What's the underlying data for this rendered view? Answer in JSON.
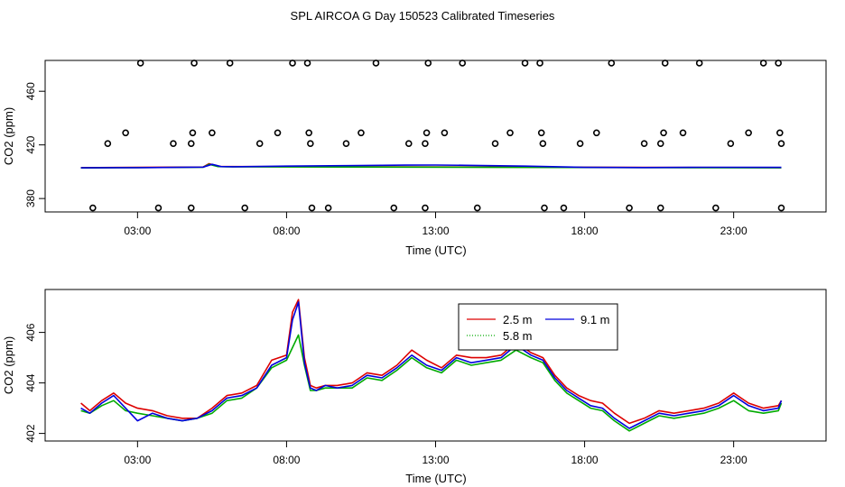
{
  "title": "SPL AIRCOA G  Day 150523  Calibrated Timeseries",
  "colors": {
    "red": "#dd0000",
    "green": "#00aa00",
    "blue": "#0000dd",
    "axis": "#000000",
    "background": "#ffffff"
  },
  "chart_data": [
    {
      "type": "scatter+line",
      "title": "",
      "xlabel": "Time (UTC)",
      "ylabel": "CO2 (ppm)",
      "xlim": [
        -0.1,
        26.1
      ],
      "ylim": [
        370,
        483
      ],
      "xticks": [
        {
          "value": 3,
          "label": "03:00"
        },
        {
          "value": 8,
          "label": "08:00"
        },
        {
          "value": 13,
          "label": "13:00"
        },
        {
          "value": 18,
          "label": "18:00"
        },
        {
          "value": 23,
          "label": "23:00"
        }
      ],
      "yticks": [
        {
          "value": 380,
          "label": "380"
        },
        {
          "value": 420,
          "label": "420"
        },
        {
          "value": 460,
          "label": "460"
        }
      ],
      "points": [
        {
          "x": 1.5,
          "y": 373
        },
        {
          "x": 2.0,
          "y": 421
        },
        {
          "x": 2.6,
          "y": 429
        },
        {
          "x": 3.1,
          "y": 481
        },
        {
          "x": 3.7,
          "y": 373
        },
        {
          "x": 4.2,
          "y": 421
        },
        {
          "x": 4.8,
          "y": 421
        },
        {
          "x": 4.8,
          "y": 373
        },
        {
          "x": 4.85,
          "y": 429
        },
        {
          "x": 4.9,
          "y": 481
        },
        {
          "x": 5.5,
          "y": 429
        },
        {
          "x": 6.1,
          "y": 481
        },
        {
          "x": 6.6,
          "y": 373
        },
        {
          "x": 7.1,
          "y": 421
        },
        {
          "x": 7.7,
          "y": 429
        },
        {
          "x": 8.2,
          "y": 481
        },
        {
          "x": 8.7,
          "y": 481
        },
        {
          "x": 8.75,
          "y": 429
        },
        {
          "x": 8.8,
          "y": 421
        },
        {
          "x": 8.85,
          "y": 373
        },
        {
          "x": 9.4,
          "y": 373
        },
        {
          "x": 10.0,
          "y": 421
        },
        {
          "x": 10.5,
          "y": 429
        },
        {
          "x": 11.0,
          "y": 481
        },
        {
          "x": 11.6,
          "y": 373
        },
        {
          "x": 12.1,
          "y": 421
        },
        {
          "x": 12.65,
          "y": 421
        },
        {
          "x": 12.65,
          "y": 373
        },
        {
          "x": 12.7,
          "y": 429
        },
        {
          "x": 12.75,
          "y": 481
        },
        {
          "x": 13.3,
          "y": 429
        },
        {
          "x": 13.9,
          "y": 481
        },
        {
          "x": 14.4,
          "y": 373
        },
        {
          "x": 15.0,
          "y": 421
        },
        {
          "x": 15.5,
          "y": 429
        },
        {
          "x": 16.0,
          "y": 481
        },
        {
          "x": 16.5,
          "y": 481
        },
        {
          "x": 16.55,
          "y": 429
        },
        {
          "x": 16.6,
          "y": 421
        },
        {
          "x": 16.65,
          "y": 373
        },
        {
          "x": 17.3,
          "y": 373
        },
        {
          "x": 17.85,
          "y": 421
        },
        {
          "x": 18.4,
          "y": 429
        },
        {
          "x": 18.9,
          "y": 481
        },
        {
          "x": 19.5,
          "y": 373
        },
        {
          "x": 20.0,
          "y": 421
        },
        {
          "x": 20.55,
          "y": 421
        },
        {
          "x": 20.55,
          "y": 373
        },
        {
          "x": 20.65,
          "y": 429
        },
        {
          "x": 20.7,
          "y": 481
        },
        {
          "x": 21.3,
          "y": 429
        },
        {
          "x": 21.85,
          "y": 481
        },
        {
          "x": 22.4,
          "y": 373
        },
        {
          "x": 22.9,
          "y": 421
        },
        {
          "x": 23.5,
          "y": 429
        },
        {
          "x": 24.0,
          "y": 481
        },
        {
          "x": 24.5,
          "y": 481
        },
        {
          "x": 24.55,
          "y": 429
        },
        {
          "x": 24.6,
          "y": 421
        },
        {
          "x": 24.6,
          "y": 373
        }
      ],
      "series": [
        {
          "name": "2.5 m",
          "color": "red",
          "x": [
            1.1,
            5.2,
            5.4,
            5.7,
            6.0,
            24.6
          ],
          "y": [
            403.0,
            403.5,
            406.0,
            404.0,
            403.8,
            403.1
          ]
        },
        {
          "name": "5.8 m",
          "color": "green",
          "x": [
            1.1,
            5.2,
            5.4,
            5.7,
            6.0,
            24.6
          ],
          "y": [
            402.8,
            403.3,
            405.5,
            403.8,
            403.6,
            402.9
          ]
        },
        {
          "name": "9.1 m",
          "color": "blue",
          "x": [
            1.1,
            3.0,
            5.2,
            5.5,
            5.8,
            6.2,
            8.0,
            10.0,
            12.0,
            13.0,
            14.0,
            16.0,
            18.0,
            20.0,
            22.0,
            24.6
          ],
          "y": [
            402.9,
            403.0,
            403.4,
            405.5,
            403.8,
            403.7,
            404.2,
            404.5,
            404.9,
            405.0,
            404.8,
            404.2,
            403.2,
            403.1,
            403.3,
            403.2
          ]
        }
      ]
    },
    {
      "type": "line",
      "title": "",
      "xlabel": "Time (UTC)",
      "ylabel": "CO2 (ppm)",
      "xlim": [
        -0.1,
        26.1
      ],
      "ylim": [
        401.7,
        407.7
      ],
      "xticks": [
        {
          "value": 3,
          "label": "03:00"
        },
        {
          "value": 8,
          "label": "08:00"
        },
        {
          "value": 13,
          "label": "13:00"
        },
        {
          "value": 18,
          "label": "18:00"
        },
        {
          "value": 23,
          "label": "23:00"
        }
      ],
      "yticks": [
        {
          "value": 402,
          "label": "402"
        },
        {
          "value": 404,
          "label": "404"
        },
        {
          "value": 406,
          "label": "406"
        }
      ],
      "legend": {
        "placement": "top-center",
        "entries": [
          {
            "label": "2.5 m",
            "color": "red",
            "style": "solid"
          },
          {
            "label": "9.1 m",
            "color": "blue",
            "style": "solid"
          },
          {
            "label": "5.8 m",
            "color": "green",
            "style": "dotted"
          }
        ]
      },
      "series": [
        {
          "name": "2.5 m",
          "color": "red",
          "x": [
            1.1,
            1.4,
            1.8,
            2.2,
            2.6,
            3.0,
            3.5,
            4.0,
            4.5,
            5.0,
            5.5,
            6.0,
            6.5,
            7.0,
            7.5,
            8.0,
            8.2,
            8.4,
            8.6,
            8.8,
            9.0,
            9.3,
            9.7,
            10.2,
            10.7,
            11.2,
            11.7,
            12.2,
            12.7,
            13.2,
            13.7,
            14.2,
            14.7,
            15.2,
            15.7,
            16.2,
            16.6,
            17.0,
            17.4,
            17.8,
            18.2,
            18.6,
            19.0,
            19.5,
            20.0,
            20.5,
            21.0,
            21.5,
            22.0,
            22.5,
            23.0,
            23.5,
            24.0,
            24.5,
            24.6
          ],
          "y": [
            403.2,
            402.9,
            403.3,
            403.6,
            403.2,
            403.0,
            402.9,
            402.7,
            402.6,
            402.6,
            403.0,
            403.5,
            403.6,
            403.9,
            404.9,
            405.1,
            406.8,
            407.3,
            405.0,
            403.9,
            403.8,
            403.9,
            403.9,
            404.0,
            404.4,
            404.3,
            404.7,
            405.3,
            404.9,
            404.6,
            405.1,
            405.0,
            405.0,
            405.1,
            405.6,
            405.2,
            405.0,
            404.3,
            403.8,
            403.5,
            403.3,
            403.2,
            402.8,
            402.4,
            402.6,
            402.9,
            402.8,
            402.9,
            403.0,
            403.2,
            403.6,
            403.2,
            403.0,
            403.1,
            403.3
          ]
        },
        {
          "name": "5.8 m",
          "color": "green",
          "x": [
            1.1,
            1.4,
            1.8,
            2.2,
            2.6,
            3.0,
            3.5,
            4.0,
            4.5,
            5.0,
            5.5,
            6.0,
            6.5,
            7.0,
            7.5,
            8.0,
            8.2,
            8.4,
            8.6,
            8.8,
            9.0,
            9.3,
            9.7,
            10.2,
            10.7,
            11.2,
            11.7,
            12.2,
            12.7,
            13.2,
            13.7,
            14.2,
            14.7,
            15.2,
            15.7,
            16.2,
            16.6,
            17.0,
            17.4,
            17.8,
            18.2,
            18.6,
            19.0,
            19.5,
            20.0,
            20.5,
            21.0,
            21.5,
            22.0,
            22.5,
            23.0,
            23.5,
            24.0,
            24.5,
            24.6
          ],
          "y": [
            402.9,
            402.8,
            403.1,
            403.3,
            402.9,
            402.8,
            402.7,
            402.6,
            402.5,
            402.6,
            402.8,
            403.3,
            403.4,
            403.8,
            404.6,
            404.9,
            405.4,
            405.9,
            404.7,
            403.7,
            403.7,
            403.8,
            403.8,
            403.8,
            404.2,
            404.1,
            404.5,
            405.0,
            404.6,
            404.4,
            404.9,
            404.7,
            404.8,
            404.9,
            405.3,
            405.0,
            404.8,
            404.1,
            403.6,
            403.3,
            403.0,
            402.9,
            402.5,
            402.1,
            402.4,
            402.7,
            402.6,
            402.7,
            402.8,
            403.0,
            403.3,
            402.9,
            402.8,
            402.9,
            403.2
          ]
        },
        {
          "name": "9.1 m",
          "color": "blue",
          "x": [
            1.1,
            1.4,
            1.8,
            2.2,
            2.6,
            3.0,
            3.5,
            4.0,
            4.5,
            5.0,
            5.5,
            6.0,
            6.5,
            7.0,
            7.5,
            8.0,
            8.2,
            8.4,
            8.6,
            8.8,
            9.0,
            9.3,
            9.7,
            10.2,
            10.7,
            11.2,
            11.7,
            12.2,
            12.7,
            13.2,
            13.7,
            14.2,
            14.7,
            15.2,
            15.7,
            16.2,
            16.6,
            17.0,
            17.4,
            17.8,
            18.2,
            18.6,
            19.0,
            19.5,
            20.0,
            20.5,
            21.0,
            21.5,
            22.0,
            22.5,
            23.0,
            23.5,
            24.0,
            24.5,
            24.6
          ],
          "y": [
            403.0,
            402.8,
            403.2,
            403.5,
            403.0,
            402.5,
            402.8,
            402.6,
            402.5,
            402.6,
            402.9,
            403.4,
            403.5,
            403.8,
            404.7,
            405.0,
            406.5,
            407.2,
            404.8,
            403.8,
            403.7,
            403.9,
            403.8,
            403.9,
            404.3,
            404.2,
            404.6,
            405.1,
            404.7,
            404.5,
            405.0,
            404.8,
            404.9,
            405.0,
            405.5,
            405.1,
            404.9,
            404.2,
            403.7,
            403.4,
            403.1,
            403.0,
            402.6,
            402.2,
            402.5,
            402.8,
            402.7,
            402.8,
            402.9,
            403.1,
            403.5,
            403.1,
            402.9,
            403.0,
            403.3
          ]
        }
      ]
    }
  ]
}
